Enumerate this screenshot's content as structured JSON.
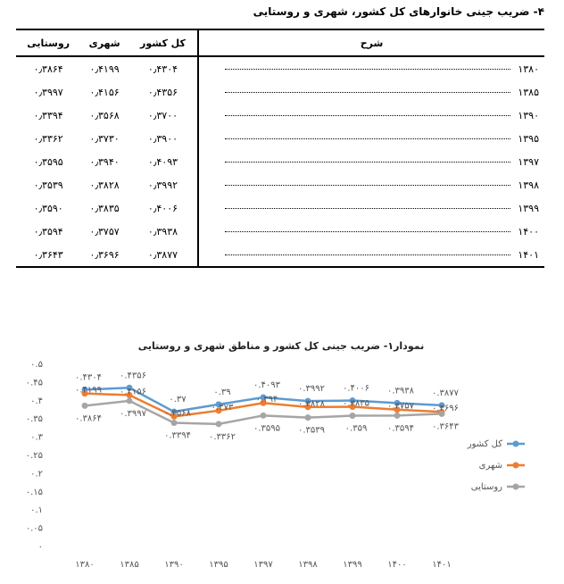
{
  "table": {
    "title": "۴- ضریب جینی خانوارهای کل کشور، شهری و روستایی",
    "headers": [
      "شرح",
      "کل کشور",
      "شهری",
      "روستایی"
    ],
    "rows": [
      [
        "۱۳۸۰",
        "۰٫۴۳۰۴",
        "۰٫۴۱۹۹",
        "۰٫۳۸۶۴"
      ],
      [
        "۱۳۸۵",
        "۰٫۴۳۵۶",
        "۰٫۴۱۵۶",
        "۰٫۳۹۹۷"
      ],
      [
        "۱۳۹۰",
        "۰٫۳۷۰۰",
        "۰٫۳۵۶۸",
        "۰٫۳۳۹۴"
      ],
      [
        "۱۳۹۵",
        "۰٫۳۹۰۰",
        "۰٫۳۷۳۰",
        "۰٫۳۳۶۲"
      ],
      [
        "۱۳۹۷",
        "۰٫۴۰۹۳",
        "۰٫۳۹۴۰",
        "۰٫۳۵۹۵"
      ],
      [
        "۱۳۹۸",
        "۰٫۳۹۹۲",
        "۰٫۳۸۲۸",
        "۰٫۳۵۳۹"
      ],
      [
        "۱۳۹۹",
        "۰٫۴۰۰۶",
        "۰٫۳۸۳۵",
        "۰٫۳۵۹۰"
      ],
      [
        "۱۴۰۰",
        "۰٫۳۹۳۸",
        "۰٫۳۷۵۷",
        "۰٫۳۵۹۴"
      ],
      [
        "۱۴۰۱",
        "۰٫۳۸۷۷",
        "۰٫۳۶۹۶",
        "۰٫۳۶۴۳"
      ]
    ]
  },
  "chart_data": {
    "type": "line",
    "title": "نمودار۱- ضریب جینی کل کشور و مناطق شهری و روستایی",
    "categories": [
      "۱۳۸۰",
      "۱۳۸۵",
      "۱۳۹۰",
      "۱۳۹۵",
      "۱۳۹۷",
      "۱۳۹۸",
      "۱۳۹۹",
      "۱۴۰۰",
      "۱۴۰۱"
    ],
    "series": [
      {
        "name": "کل کشور",
        "color": "#5b9bd5",
        "values": [
          0.4304,
          0.4356,
          0.37,
          0.39,
          0.4093,
          0.3992,
          0.4006,
          0.3938,
          0.3877
        ],
        "value_labels": [
          "۰.۴۳۰۴",
          "۰.۴۳۵۶",
          "۰.۳۷",
          "۰.۳۹",
          "۰.۴۰۹۳",
          "۰.۳۹۹۲",
          "۰.۴۰۰۶",
          "۰.۳۹۳۸",
          "۰.۳۸۷۷"
        ]
      },
      {
        "name": "شهری",
        "color": "#ed7d31",
        "values": [
          0.4199,
          0.4156,
          0.3568,
          0.373,
          0.394,
          0.3828,
          0.3835,
          0.3757,
          0.3696
        ],
        "value_labels": [
          "۰.۴۱۹۹",
          "۰.۴۱۵۶",
          "۰.۳۵۶۸",
          "۰.۳۷۳",
          "۰.۳۹۴",
          "۰.۳۸۲۸",
          "۰.۳۸۳۵",
          "۰.۳۷۵۷",
          "۰.۳۶۹۶"
        ]
      },
      {
        "name": "روستایی",
        "color": "#a5a5a5",
        "values": [
          0.3864,
          0.3997,
          0.3394,
          0.3362,
          0.3595,
          0.3539,
          0.359,
          0.3594,
          0.3643
        ],
        "value_labels": [
          "۰.۳۸۶۴",
          "۰.۳۹۹۷",
          "۰.۳۳۹۴",
          "۰.۳۳۶۲",
          "۰.۳۵۹۵",
          "۰.۳۵۳۹",
          "۰.۳۵۹",
          "۰.۳۵۹۴",
          "۰.۳۶۴۳"
        ]
      }
    ],
    "ylim": [
      0,
      0.5
    ],
    "yticks": [
      {
        "value": 0,
        "label": "۰"
      },
      {
        "value": 0.05,
        "label": "۰.۰۵"
      },
      {
        "value": 0.1,
        "label": "۰.۱"
      },
      {
        "value": 0.15,
        "label": "۰.۱۵"
      },
      {
        "value": 0.2,
        "label": "۰.۲"
      },
      {
        "value": 0.25,
        "label": "۰.۲۵"
      },
      {
        "value": 0.3,
        "label": "۰.۳"
      },
      {
        "value": 0.35,
        "label": "۰.۳۵"
      },
      {
        "value": 0.4,
        "label": "۰.۴"
      },
      {
        "value": 0.45,
        "label": "۰.۴۵"
      },
      {
        "value": 0.5,
        "label": "۰.۵"
      }
    ],
    "grid": false,
    "legend": "right"
  }
}
